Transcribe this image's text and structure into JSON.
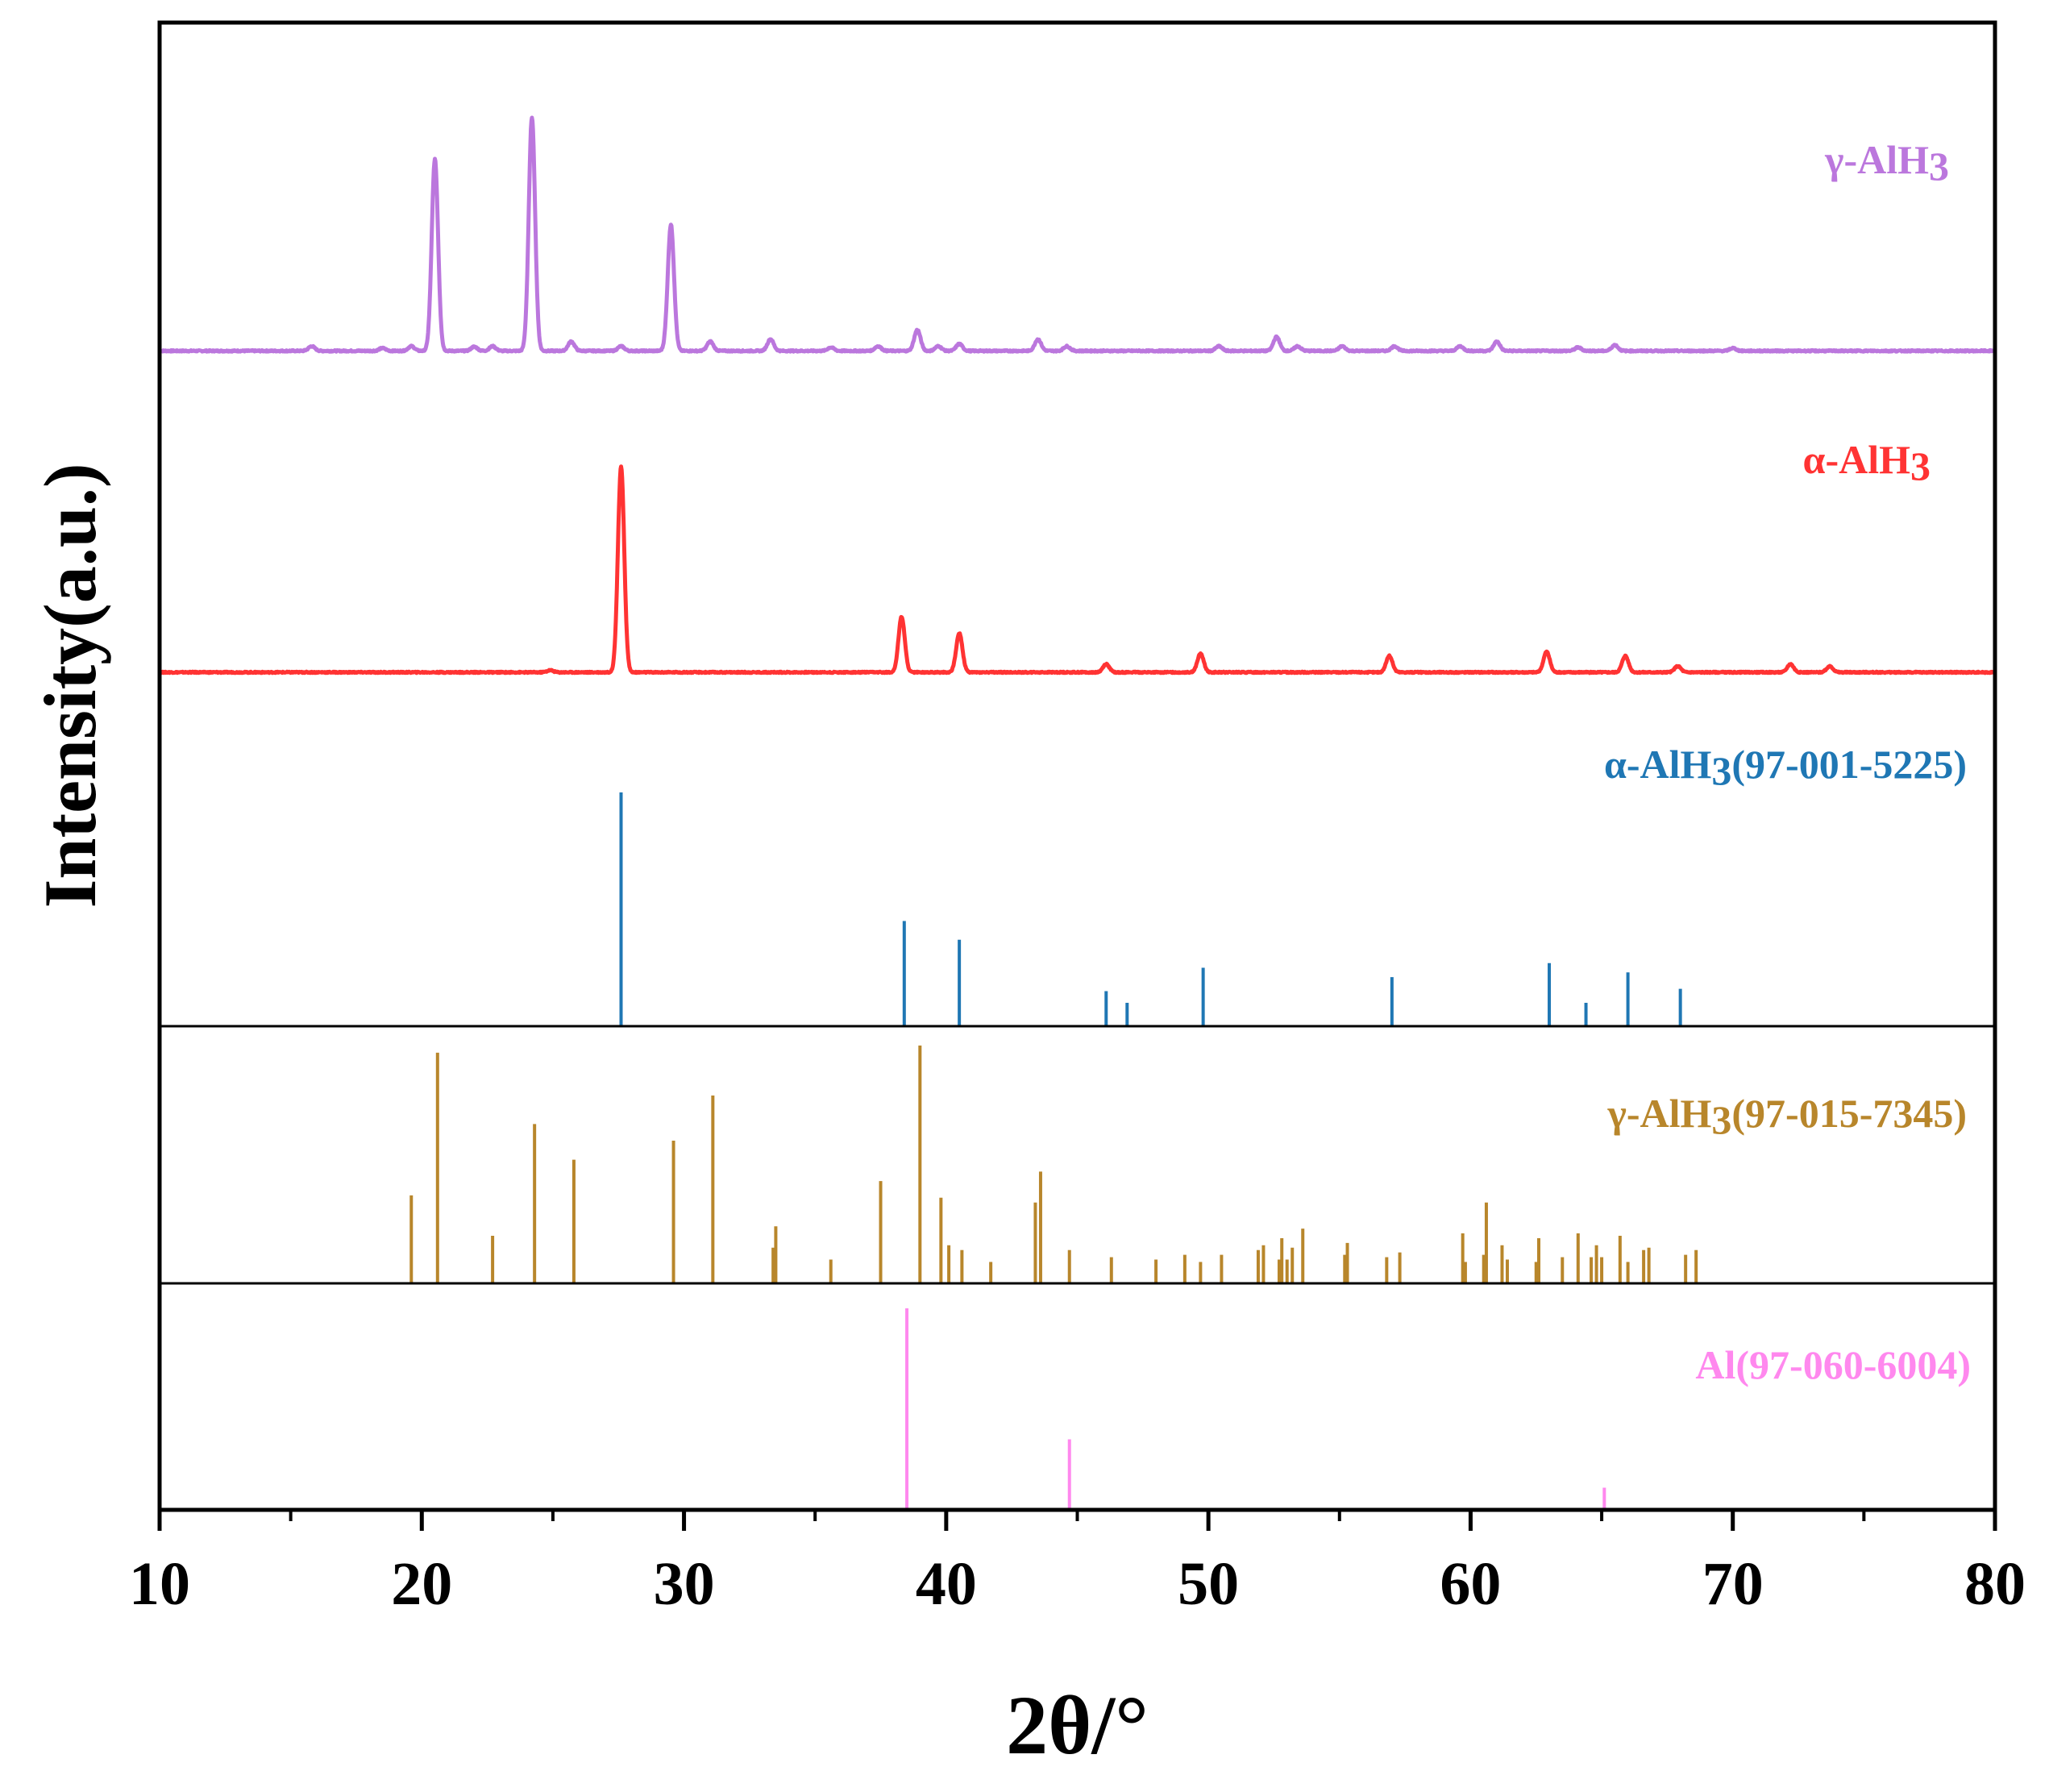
{
  "chart_data": {
    "type": "line",
    "xlabel": "2θ/°",
    "ylabel": "Intensity(a.u.)",
    "xlim": [
      10,
      80
    ],
    "xticks": [
      10,
      20,
      30,
      40,
      50,
      60,
      70,
      80
    ],
    "grid": false,
    "series": [
      {
        "name": "γ-AlH3",
        "label": "γ-AlH",
        "label_sub": "3",
        "kind": "pattern",
        "color": "#bb77dd",
        "baseline": 0.03,
        "peaks": [
          {
            "x": 15.8,
            "y": 0.02
          },
          {
            "x": 18.5,
            "y": 0.012
          },
          {
            "x": 19.6,
            "y": 0.02
          },
          {
            "x": 20.5,
            "y": 0.82
          },
          {
            "x": 22.0,
            "y": 0.018
          },
          {
            "x": 22.7,
            "y": 0.02
          },
          {
            "x": 24.2,
            "y": 1.0
          },
          {
            "x": 25.7,
            "y": 0.04
          },
          {
            "x": 27.6,
            "y": 0.02
          },
          {
            "x": 29.5,
            "y": 0.54
          },
          {
            "x": 31.0,
            "y": 0.04
          },
          {
            "x": 33.3,
            "y": 0.05
          },
          {
            "x": 35.6,
            "y": 0.015
          },
          {
            "x": 37.4,
            "y": 0.02
          },
          {
            "x": 38.9,
            "y": 0.09
          },
          {
            "x": 39.7,
            "y": 0.02
          },
          {
            "x": 40.5,
            "y": 0.03
          },
          {
            "x": 43.5,
            "y": 0.05
          },
          {
            "x": 44.6,
            "y": 0.02
          },
          {
            "x": 50.4,
            "y": 0.02
          },
          {
            "x": 52.6,
            "y": 0.06
          },
          {
            "x": 53.4,
            "y": 0.02
          },
          {
            "x": 55.1,
            "y": 0.02
          },
          {
            "x": 57.1,
            "y": 0.02
          },
          {
            "x": 59.6,
            "y": 0.02
          },
          {
            "x": 61.0,
            "y": 0.04
          },
          {
            "x": 64.1,
            "y": 0.015
          },
          {
            "x": 65.5,
            "y": 0.025
          },
          {
            "x": 70.0,
            "y": 0.012
          }
        ]
      },
      {
        "name": "α-AlH3",
        "label": "α-AlH",
        "label_sub": "3",
        "kind": "pattern",
        "color": "#ff3333",
        "baseline": 0.0,
        "peaks": [
          {
            "x": 24.9,
            "y": 0.01
          },
          {
            "x": 27.6,
            "y": 1.0
          },
          {
            "x": 38.3,
            "y": 0.27
          },
          {
            "x": 40.5,
            "y": 0.19
          },
          {
            "x": 46.1,
            "y": 0.04
          },
          {
            "x": 49.7,
            "y": 0.09
          },
          {
            "x": 56.9,
            "y": 0.08
          },
          {
            "x": 62.9,
            "y": 0.1
          },
          {
            "x": 65.9,
            "y": 0.08
          },
          {
            "x": 67.9,
            "y": 0.03
          },
          {
            "x": 72.2,
            "y": 0.04
          },
          {
            "x": 73.7,
            "y": 0.03
          }
        ]
      },
      {
        "name": "α-AlH3(97-001-5225)",
        "label": "α-AlH",
        "label_sub": "3",
        "label_suffix": "(97-001-5225)",
        "kind": "reference",
        "color": "#1f77b4",
        "peaks": [
          {
            "x": 27.6,
            "y": 1.0
          },
          {
            "x": 38.4,
            "y": 0.45
          },
          {
            "x": 40.5,
            "y": 0.37
          },
          {
            "x": 46.1,
            "y": 0.15
          },
          {
            "x": 46.9,
            "y": 0.1
          },
          {
            "x": 49.8,
            "y": 0.25
          },
          {
            "x": 57.0,
            "y": 0.21
          },
          {
            "x": 63.0,
            "y": 0.27
          },
          {
            "x": 64.4,
            "y": 0.1
          },
          {
            "x": 66.0,
            "y": 0.23
          },
          {
            "x": 68.0,
            "y": 0.16
          }
        ]
      },
      {
        "name": "γ-AlH3(97-015-7345)",
        "label": "γ-AlH",
        "label_sub": "3",
        "label_suffix": "(97-015-7345)",
        "kind": "reference",
        "color": "#b8862b",
        "peaks": [
          {
            "x": 19.6,
            "y": 0.37
          },
          {
            "x": 20.6,
            "y": 0.97
          },
          {
            "x": 22.7,
            "y": 0.2
          },
          {
            "x": 24.3,
            "y": 0.67
          },
          {
            "x": 25.8,
            "y": 0.52
          },
          {
            "x": 29.6,
            "y": 0.6
          },
          {
            "x": 31.1,
            "y": 0.79
          },
          {
            "x": 33.4,
            "y": 0.15
          },
          {
            "x": 33.5,
            "y": 0.24
          },
          {
            "x": 35.6,
            "y": 0.1
          },
          {
            "x": 37.5,
            "y": 0.43
          },
          {
            "x": 39.0,
            "y": 1.0
          },
          {
            "x": 39.8,
            "y": 0.36
          },
          {
            "x": 40.1,
            "y": 0.16
          },
          {
            "x": 40.6,
            "y": 0.14
          },
          {
            "x": 41.7,
            "y": 0.09
          },
          {
            "x": 43.4,
            "y": 0.34
          },
          {
            "x": 43.6,
            "y": 0.47
          },
          {
            "x": 44.7,
            "y": 0.14
          },
          {
            "x": 46.3,
            "y": 0.11
          },
          {
            "x": 48.0,
            "y": 0.1
          },
          {
            "x": 49.1,
            "y": 0.12
          },
          {
            "x": 49.7,
            "y": 0.09
          },
          {
            "x": 50.5,
            "y": 0.12
          },
          {
            "x": 51.9,
            "y": 0.14
          },
          {
            "x": 52.1,
            "y": 0.16
          },
          {
            "x": 52.7,
            "y": 0.1
          },
          {
            "x": 52.8,
            "y": 0.19
          },
          {
            "x": 53.0,
            "y": 0.1
          },
          {
            "x": 53.2,
            "y": 0.15
          },
          {
            "x": 53.6,
            "y": 0.23
          },
          {
            "x": 55.2,
            "y": 0.12
          },
          {
            "x": 55.3,
            "y": 0.17
          },
          {
            "x": 56.8,
            "y": 0.11
          },
          {
            "x": 57.3,
            "y": 0.13
          },
          {
            "x": 59.7,
            "y": 0.21
          },
          {
            "x": 59.8,
            "y": 0.09
          },
          {
            "x": 60.5,
            "y": 0.12
          },
          {
            "x": 60.6,
            "y": 0.34
          },
          {
            "x": 61.2,
            "y": 0.16
          },
          {
            "x": 61.4,
            "y": 0.1
          },
          {
            "x": 62.5,
            "y": 0.09
          },
          {
            "x": 62.6,
            "y": 0.19
          },
          {
            "x": 63.5,
            "y": 0.11
          },
          {
            "x": 64.1,
            "y": 0.21
          },
          {
            "x": 64.6,
            "y": 0.11
          },
          {
            "x": 64.8,
            "y": 0.16
          },
          {
            "x": 65.0,
            "y": 0.11
          },
          {
            "x": 65.7,
            "y": 0.2
          },
          {
            "x": 66.0,
            "y": 0.09
          },
          {
            "x": 66.6,
            "y": 0.14
          },
          {
            "x": 66.8,
            "y": 0.15
          },
          {
            "x": 68.2,
            "y": 0.12
          },
          {
            "x": 68.6,
            "y": 0.14
          }
        ]
      },
      {
        "name": "Al(97-060-6004)",
        "label": "Al(97-060-6004)",
        "kind": "reference",
        "color": "#ff88ee",
        "peaks": [
          {
            "x": 38.5,
            "y": 1.0
          },
          {
            "x": 44.7,
            "y": 0.35
          },
          {
            "x": 65.1,
            "y": 0.11
          }
        ]
      }
    ]
  }
}
